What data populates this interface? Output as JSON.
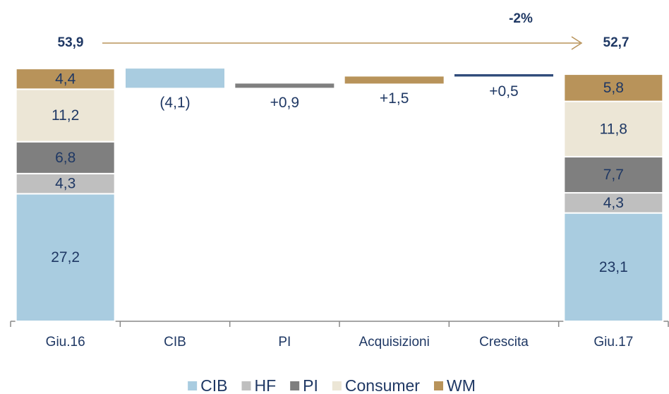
{
  "chart_data": {
    "type": "waterfall",
    "categories": [
      "Giu.16",
      "CIB",
      "PI",
      "Acquisizioni",
      "Crescita",
      "Giu.17"
    ],
    "series": [
      {
        "name": "CIB",
        "color": "#a9cce0",
        "values": [
          27.2,
          null,
          null,
          null,
          null,
          23.1
        ],
        "value_labels": [
          "27,2",
          null,
          null,
          null,
          null,
          "23,1"
        ]
      },
      {
        "name": "HF",
        "color": "#bfbfbf",
        "values": [
          4.3,
          null,
          null,
          null,
          null,
          4.3
        ],
        "value_labels": [
          "4,3",
          null,
          null,
          null,
          null,
          "4,3"
        ]
      },
      {
        "name": "PI",
        "color": "#7f7f7f",
        "values": [
          6.8,
          null,
          null,
          null,
          null,
          7.7
        ],
        "value_labels": [
          "6,8",
          null,
          null,
          null,
          null,
          "7,7"
        ]
      },
      {
        "name": "Consumer",
        "color": "#ece6d6",
        "values": [
          11.2,
          null,
          null,
          null,
          null,
          11.8
        ],
        "value_labels": [
          "11,2",
          null,
          null,
          null,
          null,
          "11,8"
        ]
      },
      {
        "name": "WM",
        "color": "#b8935a",
        "values": [
          4.4,
          null,
          null,
          null,
          null,
          5.8
        ],
        "value_labels": [
          "4,4",
          null,
          null,
          null,
          null,
          "5,8"
        ]
      }
    ],
    "changes": {
      "values": [
        null,
        -4.1,
        0.9,
        1.5,
        0.5,
        null
      ],
      "value_labels": [
        null,
        "(4,1)",
        "+0,9",
        "+1,5",
        "+0,5",
        null
      ],
      "colors": [
        null,
        "#a9cce0",
        "#7f7f7f",
        "#b8935a",
        "#2e4a7a",
        null
      ]
    },
    "totals": {
      "values": [
        53.9,
        52.7
      ],
      "value_labels": [
        "53,9",
        "52,7"
      ]
    },
    "total_change": {
      "value": -2,
      "label": "-2%"
    }
  }
}
